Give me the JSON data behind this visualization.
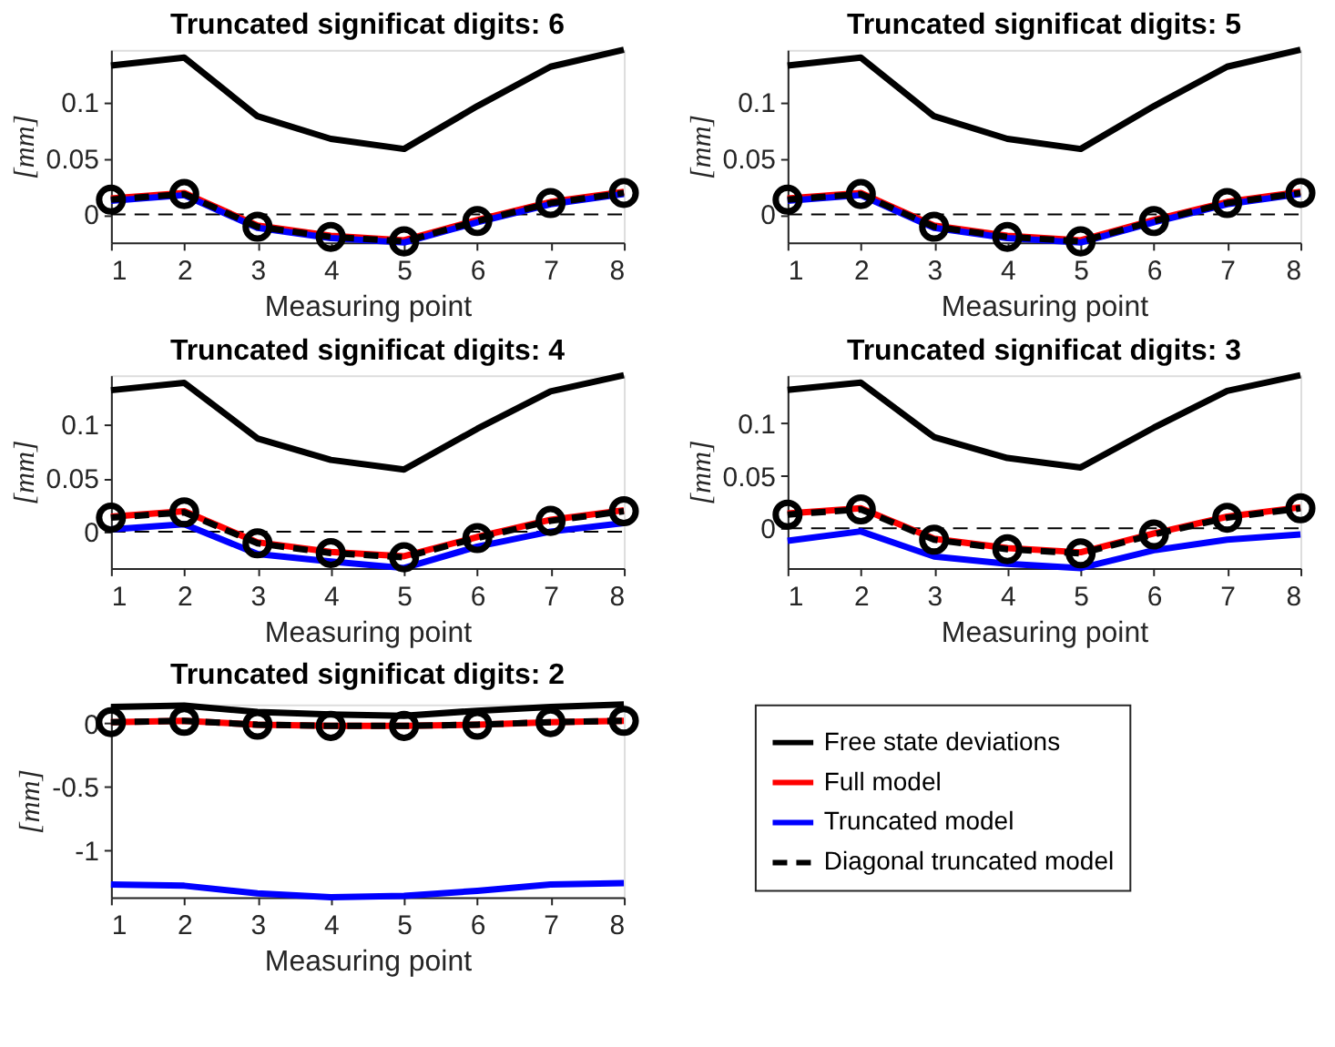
{
  "chart_data": [
    {
      "type": "line",
      "title": "Truncated significat digits: 6",
      "xlabel": "Measuring point",
      "ylabel": "[mm]",
      "x": [
        1,
        2,
        3,
        4,
        5,
        6,
        7,
        8
      ],
      "xlim": [
        1,
        8
      ],
      "xticks": [
        1,
        2,
        3,
        4,
        5,
        6,
        7,
        8
      ],
      "ylim": [
        -0.025,
        0.146
      ],
      "yticks": [
        0,
        0.05,
        0.1
      ],
      "ref_lines": [
        {
          "axis": "y",
          "value": 0,
          "color": "#000000",
          "line_style": "dashed"
        }
      ],
      "series": [
        {
          "color": "#000000",
          "values": [
            0.132,
            0.139,
            0.087,
            0.067,
            0.058,
            0.096,
            0.131,
            0.146
          ]
        },
        {
          "color": "#ff0000",
          "values": [
            0.014,
            0.019,
            -0.01,
            -0.019,
            -0.023,
            -0.005,
            0.011,
            0.02
          ]
        },
        {
          "color": "#0000ff",
          "values": [
            0.012,
            0.017,
            -0.012,
            -0.021,
            -0.025,
            -0.007,
            0.009,
            0.018
          ]
        },
        {
          "color": "#000000",
          "line_style": "dashed",
          "marker": "circle",
          "values": [
            0.013,
            0.018,
            -0.011,
            -0.02,
            -0.024,
            -0.006,
            0.01,
            0.019
          ]
        }
      ]
    },
    {
      "type": "line",
      "title": "Truncated significat digits: 5",
      "xlabel": "Measuring point",
      "ylabel": "[mm]",
      "x": [
        1,
        2,
        3,
        4,
        5,
        6,
        7,
        8
      ],
      "xlim": [
        1,
        8
      ],
      "xticks": [
        1,
        2,
        3,
        4,
        5,
        6,
        7,
        8
      ],
      "ylim": [
        -0.025,
        0.146
      ],
      "yticks": [
        0,
        0.05,
        0.1
      ],
      "ref_lines": [
        {
          "axis": "y",
          "value": 0,
          "color": "#000000",
          "line_style": "dashed"
        }
      ],
      "series": [
        {
          "color": "#000000",
          "values": [
            0.132,
            0.139,
            0.087,
            0.067,
            0.058,
            0.096,
            0.131,
            0.146
          ]
        },
        {
          "color": "#ff0000",
          "values": [
            0.014,
            0.019,
            -0.01,
            -0.019,
            -0.023,
            -0.005,
            0.011,
            0.02
          ]
        },
        {
          "color": "#0000ff",
          "values": [
            0.012,
            0.017,
            -0.012,
            -0.021,
            -0.025,
            -0.007,
            0.009,
            0.018
          ]
        },
        {
          "color": "#000000",
          "line_style": "dashed",
          "marker": "circle",
          "values": [
            0.013,
            0.018,
            -0.011,
            -0.02,
            -0.024,
            -0.006,
            0.01,
            0.019
          ]
        }
      ]
    },
    {
      "type": "line",
      "title": "Truncated significat digits: 4",
      "xlabel": "Measuring point",
      "ylabel": "[mm]",
      "x": [
        1,
        2,
        3,
        4,
        5,
        6,
        7,
        8
      ],
      "xlim": [
        1,
        8
      ],
      "xticks": [
        1,
        2,
        3,
        4,
        5,
        6,
        7,
        8
      ],
      "ylim": [
        -0.034,
        0.146
      ],
      "yticks": [
        0,
        0.05,
        0.1
      ],
      "ref_lines": [
        {
          "axis": "y",
          "value": 0,
          "color": "#000000",
          "line_style": "dashed"
        }
      ],
      "series": [
        {
          "color": "#000000",
          "values": [
            0.132,
            0.139,
            0.087,
            0.067,
            0.058,
            0.096,
            0.131,
            0.146
          ]
        },
        {
          "color": "#ff0000",
          "values": [
            0.014,
            0.019,
            -0.01,
            -0.019,
            -0.023,
            -0.005,
            0.011,
            0.02
          ]
        },
        {
          "color": "#0000ff",
          "values": [
            0.002,
            0.007,
            -0.021,
            -0.028,
            -0.034,
            -0.014,
            0.0,
            0.008
          ]
        },
        {
          "color": "#000000",
          "line_style": "dashed",
          "marker": "circle",
          "values": [
            0.013,
            0.018,
            -0.011,
            -0.02,
            -0.024,
            -0.006,
            0.01,
            0.019
          ]
        }
      ]
    },
    {
      "type": "line",
      "title": "Truncated significat digits: 3",
      "xlabel": "Measuring point",
      "ylabel": "[mm]",
      "x": [
        1,
        2,
        3,
        4,
        5,
        6,
        7,
        8
      ],
      "xlim": [
        1,
        8
      ],
      "xticks": [
        1,
        2,
        3,
        4,
        5,
        6,
        7,
        8
      ],
      "ylim": [
        -0.038,
        0.146
      ],
      "yticks": [
        0,
        0.05,
        0.1
      ],
      "ref_lines": [
        {
          "axis": "y",
          "value": 0,
          "color": "#000000",
          "line_style": "dashed"
        }
      ],
      "series": [
        {
          "color": "#000000",
          "values": [
            0.132,
            0.139,
            0.087,
            0.067,
            0.058,
            0.096,
            0.131,
            0.146
          ]
        },
        {
          "color": "#ff0000",
          "values": [
            0.014,
            0.019,
            -0.01,
            -0.019,
            -0.023,
            -0.005,
            0.011,
            0.02
          ]
        },
        {
          "color": "#0000ff",
          "values": [
            -0.012,
            -0.003,
            -0.027,
            -0.034,
            -0.038,
            -0.021,
            -0.011,
            -0.006
          ]
        },
        {
          "color": "#000000",
          "line_style": "dashed",
          "marker": "circle",
          "values": [
            0.013,
            0.018,
            -0.011,
            -0.02,
            -0.024,
            -0.006,
            0.01,
            0.019
          ]
        }
      ]
    },
    {
      "type": "line",
      "title": "Truncated significat digits: 2",
      "xlabel": "Measuring point",
      "ylabel": "[mm]",
      "x": [
        1,
        2,
        3,
        4,
        5,
        6,
        7,
        8
      ],
      "xlim": [
        1,
        8
      ],
      "xticks": [
        1,
        2,
        3,
        4,
        5,
        6,
        7,
        8
      ],
      "ylim": [
        -1.37,
        0.15
      ],
      "yticks": [
        -1,
        -0.5,
        0
      ],
      "legend": "right",
      "series": [
        {
          "name": "Free state deviations",
          "color": "#000000",
          "values": [
            0.13,
            0.14,
            0.09,
            0.07,
            0.06,
            0.1,
            0.13,
            0.15
          ]
        },
        {
          "name": "Full model",
          "color": "#ff0000",
          "values": [
            0.01,
            0.02,
            -0.01,
            -0.02,
            -0.02,
            -0.01,
            0.01,
            0.02
          ]
        },
        {
          "name": "Truncated model",
          "color": "#0000ff",
          "values": [
            -1.27,
            -1.28,
            -1.34,
            -1.37,
            -1.36,
            -1.32,
            -1.27,
            -1.26
          ]
        },
        {
          "name": "Diagonal truncated model",
          "color": "#000000",
          "line_style": "dashed",
          "marker": "circle",
          "values": [
            0.01,
            0.02,
            -0.01,
            -0.02,
            -0.02,
            -0.01,
            0.01,
            0.02
          ]
        }
      ]
    }
  ]
}
